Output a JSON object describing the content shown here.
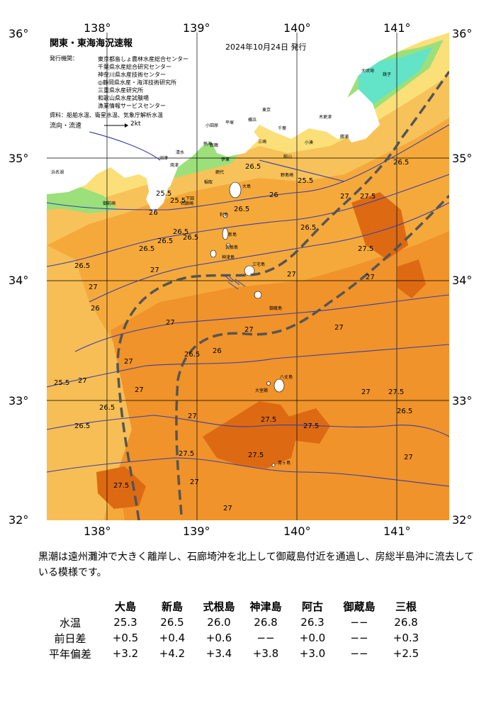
{
  "axes": {
    "lon_top": [
      "138°",
      "139°",
      "140°",
      "141°"
    ],
    "lon_bottom": [
      "138°",
      "139°",
      "140°",
      "141°"
    ],
    "lat_left": [
      "36°",
      "35°",
      "34°",
      "33°",
      "32°"
    ],
    "lat_right": [
      "36°",
      "35°",
      "34°",
      "33°",
      "32°"
    ]
  },
  "header": {
    "title": "関東・東海海況速報",
    "date": "2024年10月24日 発行"
  },
  "issuers": {
    "label": "発行機関：",
    "institutions": [
      "東京都島しょ農林水産総合センター",
      "千葉県水産総合研究センター",
      "神奈川県水産技術センター",
      "◎静岡県水産・海洋技術研究所",
      "三重県水産研究所",
      "和歌山県水産試験場",
      "漁業情報サービスセンター"
    ],
    "source": "資料：船舶水温、衛星水温、気象庁解析水温",
    "flow_label": "流向・流速",
    "flow_scale": "2kt"
  },
  "isotherm_labels": [
    {
      "text": "26.5"
    },
    {
      "text": "25.5"
    },
    {
      "text": "26"
    },
    {
      "text": "26.5"
    },
    {
      "text": "26.5"
    },
    {
      "text": "26.5"
    },
    {
      "text": "26"
    },
    {
      "text": "27"
    },
    {
      "text": "27.5"
    },
    {
      "text": "27"
    },
    {
      "text": "26.5"
    },
    {
      "text": "27.5"
    },
    {
      "text": "27"
    },
    {
      "text": "26.5"
    },
    {
      "text": "25.5"
    },
    {
      "text": "26.5"
    },
    {
      "text": "27"
    },
    {
      "text": "27"
    },
    {
      "text": "26.5"
    },
    {
      "text": "27"
    },
    {
      "text": "27.5"
    },
    {
      "text": "27.5"
    },
    {
      "text": "27.5"
    },
    {
      "text": "27"
    },
    {
      "text": "27.5"
    },
    {
      "text": "27.5"
    },
    {
      "text": "27"
    },
    {
      "text": "26.5"
    },
    {
      "text": "27"
    },
    {
      "text": "27.5"
    },
    {
      "text": "25.5"
    },
    {
      "text": "26"
    },
    {
      "text": "26.5"
    },
    {
      "text": "27"
    },
    {
      "text": "27"
    },
    {
      "text": "26.5"
    },
    {
      "text": "27"
    },
    {
      "text": "26.5"
    },
    {
      "text": "27"
    },
    {
      "text": "27"
    },
    {
      "text": "25.5"
    },
    {
      "text": "26.5"
    },
    {
      "text": "27"
    },
    {
      "text": "26"
    },
    {
      "text": "27"
    }
  ],
  "place_names": [
    "大島",
    "利島",
    "新島",
    "式根島",
    "神津島",
    "三宅島",
    "御蔵島",
    "八丈島",
    "青ヶ島",
    "大室礁",
    "野島崎",
    "千葉",
    "横浜",
    "平塚",
    "小田原",
    "石廊崎",
    "御前崎",
    "浜名湖",
    "焼津",
    "清水",
    "銚子",
    "大吠埼",
    "木更津",
    "館山",
    "勝浦",
    "小湊",
    "三崎",
    "真鶴",
    "稲取",
    "下田",
    "伊東",
    "熱海",
    "沼津",
    "網代",
    "東京"
  ],
  "description": "黒潮は遠州灘沖で大きく離岸し、石廊埼沖を北上して御蔵島付近を通過し、房総半島沖に流去している模様です。",
  "table": {
    "columns": [
      "大島",
      "新島",
      "式根島",
      "神津島",
      "阿古",
      "御蔵島",
      "三根"
    ],
    "rows": [
      {
        "label": "水温",
        "values": [
          "25.3",
          "26.5",
          "26.0",
          "26.8",
          "26.3",
          "−−",
          "26.8"
        ]
      },
      {
        "label": "前日差",
        "values": [
          "+0.5",
          "+0.4",
          "+0.6",
          "−−",
          "+0.0",
          "−−",
          "+0.3"
        ]
      },
      {
        "label": "平年偏差",
        "values": [
          "+3.2",
          "+4.2",
          "+3.4",
          "+3.8",
          "+3.0",
          "−−",
          "+2.5"
        ]
      }
    ]
  },
  "colors": {
    "sea_26_27": "#f6a93b",
    "sea_27_275": "#f0932a",
    "sea_above_275": "#dd6a12",
    "sea_255_26": "#f7c25a",
    "sea_25_255": "#fbdf78",
    "coastal_cool": "#9be07a",
    "coastal_cold": "#63e3c8",
    "land": "#ffffff",
    "isotherm": "#3a3fa8",
    "kuroshio": "#555555"
  }
}
